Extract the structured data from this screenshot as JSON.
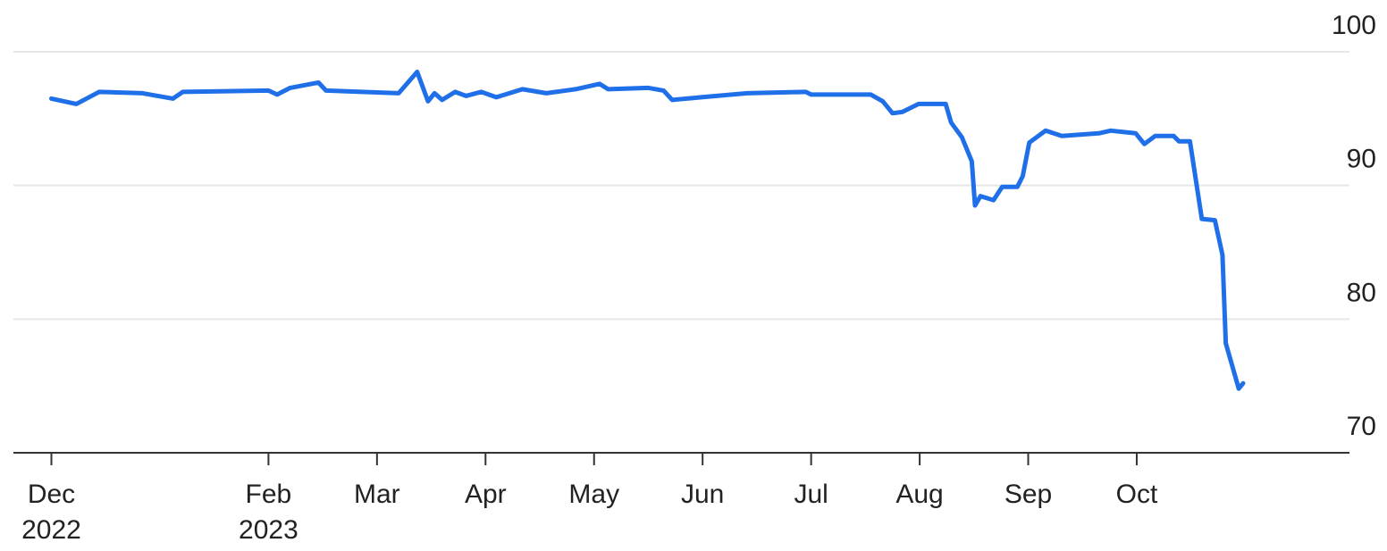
{
  "chart_data": {
    "type": "line",
    "x": [
      0,
      0.23,
      0.44,
      0.84,
      1.12,
      1.21,
      2,
      2.08,
      2.2,
      2.46,
      2.53,
      3.2,
      3.37,
      3.47,
      3.53,
      3.6,
      3.72,
      3.82,
      3.96,
      4.1,
      4.34,
      4.56,
      4.83,
      5.05,
      5.13,
      5.5,
      5.64,
      5.72,
      5.99,
      6.41,
      6.95,
      7.0,
      7.55,
      7.66,
      7.75,
      7.84,
      7.99,
      8.24,
      8.29,
      8.39,
      8.48,
      8.51,
      8.56,
      8.68,
      8.76,
      8.9,
      8.95,
      9.01,
      9.16,
      9.31,
      9.65,
      9.76,
      9.99,
      10.07,
      10.17,
      10.34,
      10.39,
      10.49,
      10.6,
      10.72,
      10.79,
      10.82,
      10.94,
      10.98
    ],
    "series": [
      {
        "color": "#1f6fe8",
        "values": [
          96.5,
          96.1,
          97.0,
          96.9,
          96.5,
          97.0,
          97.1,
          96.8,
          97.3,
          97.7,
          97.1,
          96.9,
          98.5,
          96.3,
          96.9,
          96.4,
          97.0,
          96.7,
          97.0,
          96.6,
          97.2,
          96.9,
          97.2,
          97.6,
          97.2,
          97.3,
          97.1,
          96.4,
          96.6,
          96.9,
          97.0,
          96.8,
          96.8,
          96.3,
          95.4,
          95.5,
          96.1,
          96.1,
          94.7,
          93.6,
          91.8,
          88.5,
          89.2,
          88.9,
          89.9,
          89.9,
          90.7,
          93.2,
          94.1,
          93.7,
          93.9,
          94.1,
          93.9,
          93.1,
          93.7,
          93.7,
          93.3,
          93.3,
          87.5,
          87.4,
          84.8,
          78.2,
          74.8,
          75.2
        ]
      }
    ],
    "xlim": [
      -0.35,
      11.96
    ],
    "xticks": [
      {
        "value": 0,
        "label": "Dec 2022"
      },
      {
        "value": 2,
        "label": "Feb 2023"
      },
      {
        "value": 3,
        "label": "Mar"
      },
      {
        "value": 4,
        "label": "Apr"
      },
      {
        "value": 5,
        "label": "May"
      },
      {
        "value": 6,
        "label": "Jun"
      },
      {
        "value": 7,
        "label": "Jul"
      },
      {
        "value": 8,
        "label": "Aug"
      },
      {
        "value": 9,
        "label": "Sep"
      },
      {
        "value": 10,
        "label": "Oct"
      }
    ],
    "ylim": [
      70,
      100
    ],
    "yticks": [
      70,
      80,
      90,
      100
    ],
    "grid": true
  }
}
